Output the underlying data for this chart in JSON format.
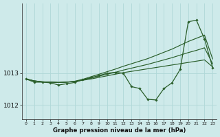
{
  "background_color": "#ceeaea",
  "grid_color": "#b0d8d8",
  "line_color": "#2a5e2a",
  "title": "Graphe pression niveau de la mer (hPa)",
  "xlim": [
    -0.5,
    23.5
  ],
  "ylim": [
    1011.55,
    1015.2
  ],
  "yticks": [
    1012,
    1013
  ],
  "x_ticks": [
    0,
    1,
    2,
    3,
    4,
    5,
    6,
    7,
    8,
    9,
    10,
    11,
    12,
    13,
    14,
    15,
    16,
    17,
    18,
    19,
    20,
    21,
    22,
    23
  ],
  "main_y": [
    1012.82,
    1012.72,
    1012.72,
    1012.7,
    1012.63,
    1012.67,
    1012.71,
    1012.8,
    1012.86,
    1012.93,
    1013.0,
    1013.03,
    1013.0,
    1012.58,
    1012.52,
    1012.18,
    1012.16,
    1012.52,
    1012.7,
    1013.12,
    1014.62,
    1014.67,
    1014.08,
    1013.18
  ],
  "fan_lines": [
    [
      1012.82,
      1012.76,
      1012.73,
      1012.72,
      1012.71,
      1012.72,
      1012.74,
      1012.78,
      1012.82,
      1012.87,
      1012.92,
      1012.97,
      1013.02,
      1013.06,
      1013.1,
      1013.14,
      1013.18,
      1013.22,
      1013.26,
      1013.3,
      1013.34,
      1013.38,
      1013.42,
      1013.2
    ],
    [
      1012.82,
      1012.76,
      1012.73,
      1012.72,
      1012.71,
      1012.72,
      1012.74,
      1012.79,
      1012.85,
      1012.91,
      1012.97,
      1013.03,
      1013.1,
      1013.16,
      1013.22,
      1013.28,
      1013.35,
      1013.42,
      1013.49,
      1013.57,
      1013.65,
      1013.72,
      1013.8,
      1013.3
    ],
    [
      1012.82,
      1012.76,
      1012.73,
      1012.72,
      1012.71,
      1012.72,
      1012.75,
      1012.81,
      1012.89,
      1012.97,
      1013.05,
      1013.13,
      1013.22,
      1013.3,
      1013.38,
      1013.46,
      1013.56,
      1013.66,
      1013.76,
      1013.88,
      1014.0,
      1014.1,
      1014.2,
      1013.45
    ]
  ]
}
